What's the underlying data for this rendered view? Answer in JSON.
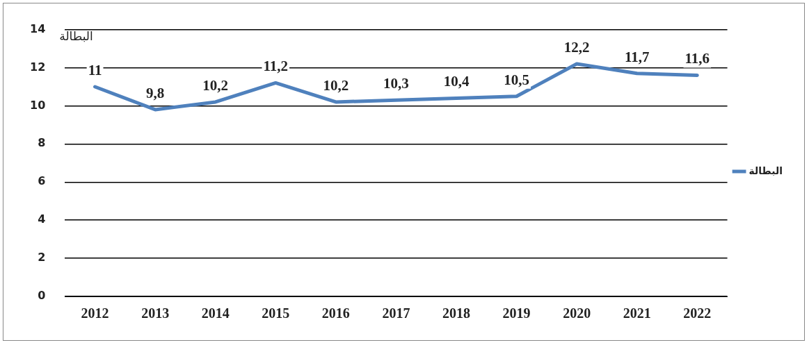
{
  "chart_data": {
    "type": "line",
    "ylabel": "البطالة",
    "categories": [
      "2012",
      "2013",
      "2014",
      "2015",
      "2016",
      "2017",
      "2018",
      "2019",
      "2020",
      "2021",
      "2022"
    ],
    "series": [
      {
        "name": "البطالة",
        "color": "#4f81bd",
        "values": [
          11,
          9.8,
          10.2,
          11.2,
          10.2,
          10.3,
          10.4,
          10.5,
          12.2,
          11.7,
          11.6
        ],
        "value_labels": [
          "11",
          "9,8",
          "10,2",
          "11,2",
          "10,2",
          "10,3",
          "10,4",
          "10,5",
          "12,2",
          "11,7",
          "11,6"
        ]
      }
    ],
    "ylim": [
      0,
      14
    ],
    "yticks": [
      0,
      2,
      4,
      6,
      8,
      10,
      12,
      14
    ],
    "grid": "y",
    "legend": "right",
    "marker": "none",
    "line_style": "solid"
  }
}
